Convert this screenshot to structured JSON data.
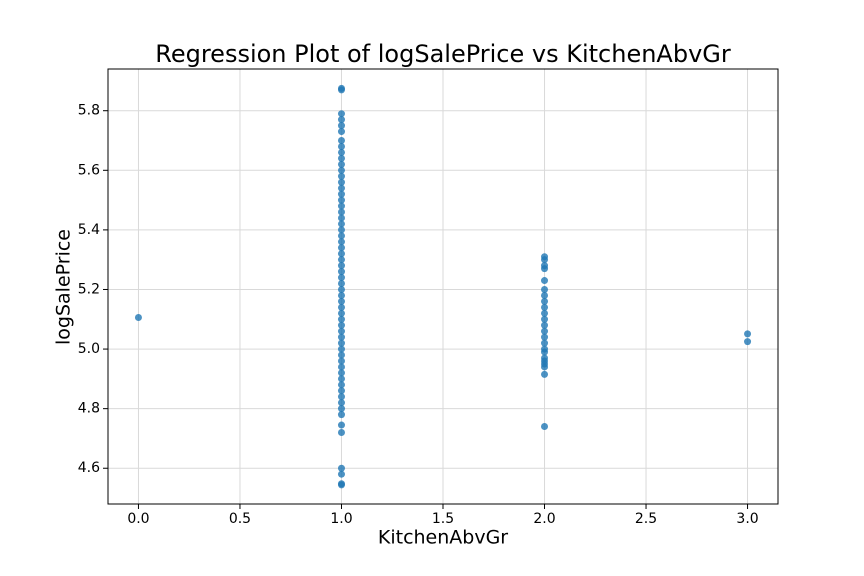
{
  "chart_data": {
    "type": "scatter",
    "title": "Regression Plot of logSalePrice vs KitchenAbvGr",
    "x_label": "KitchenAbvGr",
    "y_label": "logSalePrice",
    "color": "#1f77b4",
    "grid": true,
    "xlim": [
      -0.15,
      3.15
    ],
    "ylim": [
      4.48,
      5.94
    ],
    "xticks": [
      {
        "value": 0,
        "label": "0.0"
      },
      0.5,
      {
        "value": 1,
        "label": "1.0"
      },
      1.5,
      {
        "value": 2,
        "label": "2.0"
      },
      2.5,
      {
        "value": 3,
        "label": "3.0"
      }
    ],
    "yticks": [
      4.6,
      4.8,
      {
        "value": 5,
        "label": "5.0"
      },
      5.2,
      5.4,
      5.6,
      5.8
    ],
    "x": [
      0,
      3,
      3,
      2,
      2,
      2,
      2,
      2,
      2,
      2,
      2,
      2,
      2,
      2,
      2,
      2,
      2,
      2,
      2,
      2,
      2,
      2,
      2,
      2,
      2,
      2,
      1,
      1,
      1,
      1,
      1,
      1,
      1,
      1,
      1,
      1,
      1,
      1,
      1,
      1,
      1,
      1,
      1,
      1,
      1,
      1,
      1,
      1,
      1,
      1,
      1,
      1,
      1,
      1,
      1,
      1,
      1,
      1,
      1,
      1,
      1,
      1,
      1,
      1,
      1,
      1,
      1,
      1,
      1,
      1,
      1,
      1,
      1,
      1,
      1,
      1,
      1,
      1,
      1,
      1,
      1,
      1,
      1,
      1,
      1
    ],
    "values": [
      5.106,
      5.051,
      5.025,
      4.74,
      4.915,
      4.94,
      4.95,
      4.96,
      4.97,
      4.99,
      5.0,
      5.02,
      5.04,
      5.06,
      5.08,
      5.1,
      5.12,
      5.14,
      5.16,
      5.18,
      5.2,
      5.23,
      5.27,
      5.28,
      5.3,
      5.31,
      4.544,
      4.548,
      4.58,
      4.6,
      4.72,
      4.745,
      4.78,
      4.8,
      4.82,
      4.84,
      4.86,
      4.88,
      4.9,
      4.92,
      4.94,
      4.96,
      4.98,
      5.0,
      5.02,
      5.04,
      5.06,
      5.08,
      5.1,
      5.12,
      5.14,
      5.16,
      5.18,
      5.2,
      5.22,
      5.24,
      5.26,
      5.28,
      5.3,
      5.32,
      5.34,
      5.36,
      5.38,
      5.4,
      5.42,
      5.44,
      5.46,
      5.48,
      5.5,
      5.52,
      5.54,
      5.56,
      5.58,
      5.6,
      5.62,
      5.64,
      5.66,
      5.68,
      5.7,
      5.73,
      5.75,
      5.77,
      5.79,
      5.87,
      5.875
    ]
  }
}
